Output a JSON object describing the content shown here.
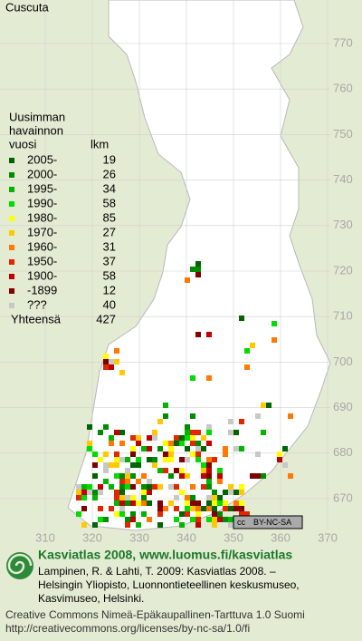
{
  "title": "Cuscuta",
  "legend": {
    "heading": [
      "Uusimman",
      "havainnon"
    ],
    "col_year": "vuosi",
    "col_count": "lkm",
    "rows": [
      {
        "label": "2005-",
        "count": 19,
        "color": "#006400"
      },
      {
        "label": "2000-",
        "count": 26,
        "color": "#008c00"
      },
      {
        "label": "1995-",
        "count": 34,
        "color": "#00b400"
      },
      {
        "label": "1990-",
        "count": 58,
        "color": "#00dc00"
      },
      {
        "label": "1980-",
        "count": 85,
        "color": "#ffff00"
      },
      {
        "label": "1970-",
        "count": 27,
        "color": "#ffc800"
      },
      {
        "label": "1960-",
        "count": 31,
        "color": "#ff7800"
      },
      {
        "label": "1950-",
        "count": 37,
        "color": "#e02800"
      },
      {
        "label": "1900-",
        "count": 58,
        "color": "#c00000"
      },
      {
        "label": "-1899",
        "count": 12,
        "color": "#800000"
      },
      {
        "label": "???",
        "count": 40,
        "color": "#c8c8c8"
      }
    ],
    "total_label": "Yhteensä",
    "total": 427
  },
  "grid": {
    "north": [
      770,
      760,
      750,
      740,
      730,
      720,
      710,
      700,
      690,
      680,
      670
    ],
    "east": [
      310,
      320,
      330,
      340,
      350,
      360,
      370
    ]
  },
  "license_badge": {
    "icon": "cc",
    "text": "BY-NC-SA"
  },
  "footer": {
    "heading": "Kasviatlas 2008, www.luomus.fi/kasviatlas",
    "citation": [
      "Lampinen, R. & Lahti, T. 2009: Kasviatlas 2008. –",
      "Helsingin Yliopisto, Luonnontieteellinen keskusmuseo,",
      "Kasvimuseo, Helsinki."
    ],
    "license": [
      "Creative Commons Nimeä-Epäkaupallinen-Tarttuva 1.0 Suomi",
      "http://creativecommons.org/licenses/by-nc-sa/1.0/fi"
    ]
  }
}
